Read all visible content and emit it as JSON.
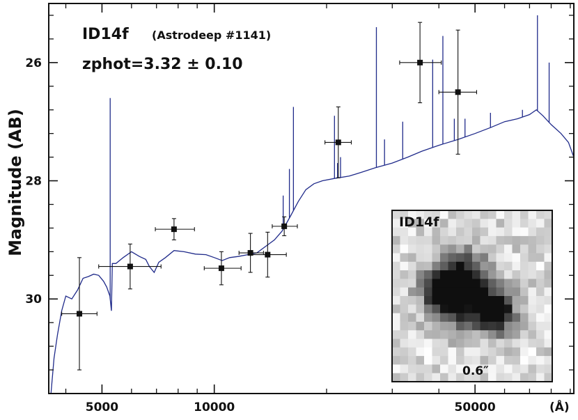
{
  "chart_data": {
    "type": "scatter",
    "xscale": "log",
    "xlim": [
      3600,
      92000
    ],
    "ylim": [
      31.6,
      25.0
    ],
    "y_inverted": true,
    "ylabel": "Magnitude (AB)",
    "xunit": "(Å)",
    "x_ticks": [
      5000,
      10000,
      50000
    ],
    "x_tick_labels": [
      "5000",
      "10000",
      "50000"
    ],
    "y_ticks": [
      26,
      28,
      30
    ],
    "y_tick_labels": [
      "26",
      "28",
      "30"
    ],
    "grid": false,
    "annotations": {
      "object_id": "ID14f",
      "catalog": "(Astrodeep #1141)",
      "redshift": "zphot=3.32 ± 0.10"
    },
    "series": [
      {
        "kind": "errorbar-points",
        "color": "#000000",
        "points": [
          {
            "x": 4350,
            "y": 30.25,
            "xerr": [
              450,
              500
            ],
            "yerr": [
              0.95,
              0.95
            ]
          },
          {
            "x": 5950,
            "y": 29.45,
            "xerr": [
              1050,
              1250
            ],
            "yerr": [
              0.38,
              0.38
            ]
          },
          {
            "x": 7800,
            "y": 28.82,
            "xerr": [
              850,
              1050
            ],
            "yerr": [
              0.18,
              0.18
            ]
          },
          {
            "x": 10450,
            "y": 29.48,
            "xerr": [
              1050,
              1350
            ],
            "yerr": [
              0.28,
              0.28
            ]
          },
          {
            "x": 12500,
            "y": 29.22,
            "xerr": [
              850,
              1050
            ],
            "yerr": [
              0.33,
              0.33
            ]
          },
          {
            "x": 13900,
            "y": 29.25,
            "xerr": [
              1400,
              1700
            ],
            "yerr": [
              0.38,
              0.38
            ]
          },
          {
            "x": 15400,
            "y": 28.77,
            "xerr": [
              1100,
              1300
            ],
            "yerr": [
              0.16,
              0.16
            ]
          },
          {
            "x": 21500,
            "y": 27.35,
            "xerr": [
              1700,
              1800
            ],
            "yerr": [
              0.6,
              0.6
            ]
          },
          {
            "x": 35600,
            "y": 26.0,
            "xerr": [
              4200,
              5000
            ],
            "yerr": [
              0.68,
              0.68
            ]
          },
          {
            "x": 45000,
            "y": 26.5,
            "xerr": [
              5000,
              5500
            ],
            "yerr": [
              1.05,
              1.05
            ]
          }
        ]
      },
      {
        "kind": "model-line",
        "color": "#1f2a8a",
        "continuum": [
          [
            3650,
            31.8
          ],
          [
            3720,
            31.0
          ],
          [
            3800,
            30.6
          ],
          [
            3900,
            30.2
          ],
          [
            4000,
            29.95
          ],
          [
            4150,
            30.0
          ],
          [
            4300,
            29.85
          ],
          [
            4450,
            29.65
          ],
          [
            4600,
            29.62
          ],
          [
            4750,
            29.58
          ],
          [
            4900,
            29.6
          ],
          [
            5050,
            29.7
          ],
          [
            5150,
            29.8
          ],
          [
            5250,
            29.95
          ],
          [
            5300,
            30.2
          ],
          [
            5330,
            29.4
          ],
          [
            5450,
            29.4
          ],
          [
            5700,
            29.3
          ],
          [
            6000,
            29.2
          ],
          [
            6300,
            29.28
          ],
          [
            6550,
            29.33
          ],
          [
            6700,
            29.45
          ],
          [
            6900,
            29.55
          ],
          [
            7100,
            29.38
          ],
          [
            7400,
            29.3
          ],
          [
            7800,
            29.18
          ],
          [
            8300,
            29.2
          ],
          [
            8900,
            29.24
          ],
          [
            9500,
            29.25
          ],
          [
            10000,
            29.3
          ],
          [
            10500,
            29.35
          ],
          [
            11000,
            29.3
          ],
          [
            11600,
            29.28
          ],
          [
            12300,
            29.25
          ],
          [
            13000,
            29.22
          ],
          [
            13800,
            29.1
          ],
          [
            14500,
            29.0
          ],
          [
            15200,
            28.85
          ],
          [
            16000,
            28.6
          ],
          [
            16800,
            28.35
          ],
          [
            17600,
            28.15
          ],
          [
            18500,
            28.05
          ],
          [
            19500,
            28.0
          ],
          [
            21000,
            27.96
          ],
          [
            23000,
            27.92
          ],
          [
            25000,
            27.85
          ],
          [
            27000,
            27.78
          ],
          [
            30000,
            27.7
          ],
          [
            33000,
            27.6
          ],
          [
            36000,
            27.5
          ],
          [
            40000,
            27.4
          ],
          [
            45000,
            27.3
          ],
          [
            50000,
            27.2
          ],
          [
            55000,
            27.1
          ],
          [
            60000,
            27.0
          ],
          [
            65000,
            26.95
          ],
          [
            70000,
            26.88
          ],
          [
            73000,
            26.8
          ],
          [
            76000,
            26.9
          ],
          [
            80000,
            27.05
          ],
          [
            85000,
            27.2
          ],
          [
            89000,
            27.35
          ],
          [
            92000,
            27.6
          ]
        ],
        "emission_lines": [
          {
            "x": 5260,
            "peak": 26.6
          },
          {
            "x": 15300,
            "peak": 28.25
          },
          {
            "x": 15900,
            "peak": 27.8
          },
          {
            "x": 16300,
            "peak": 26.75
          },
          {
            "x": 21000,
            "peak": 26.9
          },
          {
            "x": 21400,
            "peak": 27.7
          },
          {
            "x": 21800,
            "peak": 27.6
          },
          {
            "x": 27200,
            "peak": 25.4
          },
          {
            "x": 28600,
            "peak": 27.3
          },
          {
            "x": 32000,
            "peak": 27.0
          },
          {
            "x": 38500,
            "peak": 25.95
          },
          {
            "x": 41000,
            "peak": 25.55
          },
          {
            "x": 44000,
            "peak": 26.95
          },
          {
            "x": 47000,
            "peak": 26.95
          },
          {
            "x": 55000,
            "peak": 26.85
          },
          {
            "x": 67000,
            "peak": 26.8
          },
          {
            "x": 73500,
            "peak": 25.2
          },
          {
            "x": 79000,
            "peak": 26.0
          }
        ]
      }
    ],
    "inset": {
      "label": "ID14f",
      "scale_label": "0.6″"
    }
  }
}
